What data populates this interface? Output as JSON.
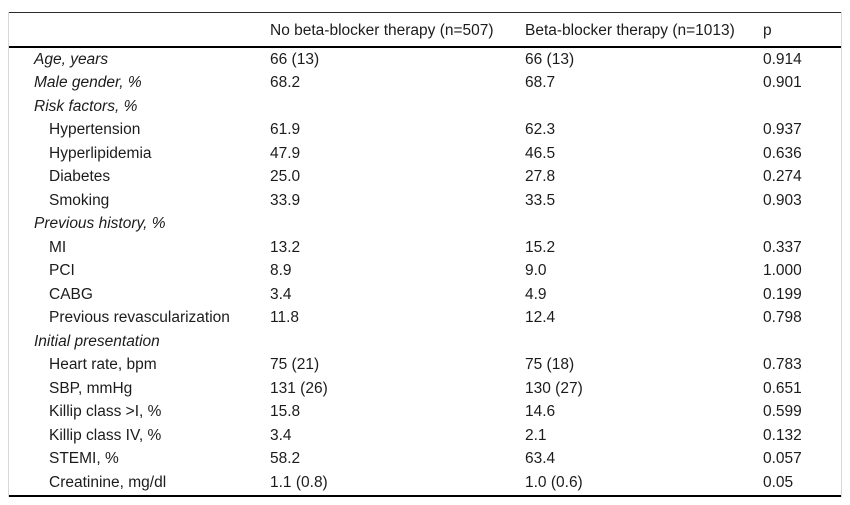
{
  "table": {
    "columns": {
      "label": "",
      "group1": "No beta-blocker therapy (n=507)",
      "group2": "Beta-blocker therapy (n=1013)",
      "p": "p"
    },
    "rows": [
      {
        "label": "Age, years",
        "style": "group",
        "values": [
          "66 (13)",
          "66 (13)",
          "0.914"
        ]
      },
      {
        "label": "Male gender, %",
        "style": "group",
        "values": [
          "68.2",
          "68.7",
          "0.901"
        ]
      },
      {
        "label": "Risk factors, %",
        "style": "group",
        "values": [
          "",
          "",
          ""
        ]
      },
      {
        "label": "Hypertension",
        "style": "item",
        "values": [
          "61.9",
          "62.3",
          "0.937"
        ]
      },
      {
        "label": "Hyperlipidemia",
        "style": "item",
        "values": [
          "47.9",
          "46.5",
          "0.636"
        ]
      },
      {
        "label": "Diabetes",
        "style": "item",
        "values": [
          "25.0",
          "27.8",
          "0.274"
        ]
      },
      {
        "label": "Smoking",
        "style": "item",
        "values": [
          "33.9",
          "33.5",
          "0.903"
        ]
      },
      {
        "label": "Previous history, %",
        "style": "group",
        "values": [
          "",
          "",
          ""
        ]
      },
      {
        "label": "MI",
        "style": "item",
        "values": [
          "13.2",
          "15.2",
          "0.337"
        ]
      },
      {
        "label": "PCI",
        "style": "item",
        "values": [
          "8.9",
          "9.0",
          "1.000"
        ]
      },
      {
        "label": "CABG",
        "style": "item",
        "values": [
          "3.4",
          "4.9",
          "0.199"
        ]
      },
      {
        "label": "Previous revascularization",
        "style": "item",
        "values": [
          "11.8",
          "12.4",
          "0.798"
        ]
      },
      {
        "label": "Initial presentation",
        "style": "group",
        "values": [
          "",
          "",
          ""
        ]
      },
      {
        "label": "Heart rate, bpm",
        "style": "item",
        "values": [
          "75 (21)",
          "75 (18)",
          "0.783"
        ]
      },
      {
        "label": "SBP, mmHg",
        "style": "item",
        "values": [
          "131 (26)",
          "130 (27)",
          "0.651"
        ]
      },
      {
        "label": "Killip class >I, %",
        "style": "item",
        "values": [
          "15.8",
          "14.6",
          "0.599"
        ]
      },
      {
        "label": "Killip class IV, %",
        "style": "item",
        "values": [
          "3.4",
          "2.1",
          "0.132"
        ]
      },
      {
        "label": "STEMI, %",
        "style": "item",
        "values": [
          "58.2",
          "63.4",
          "0.057"
        ]
      },
      {
        "label": "Creatinine, mg/dl",
        "style": "item",
        "values": [
          "1.1 (0.8)",
          "1.0 (0.6)",
          "0.05"
        ]
      }
    ]
  },
  "colors": {
    "background": "#ffffff",
    "text": "#1c1c1c",
    "rule": "#000000",
    "frame": "#d7d7d7"
  }
}
